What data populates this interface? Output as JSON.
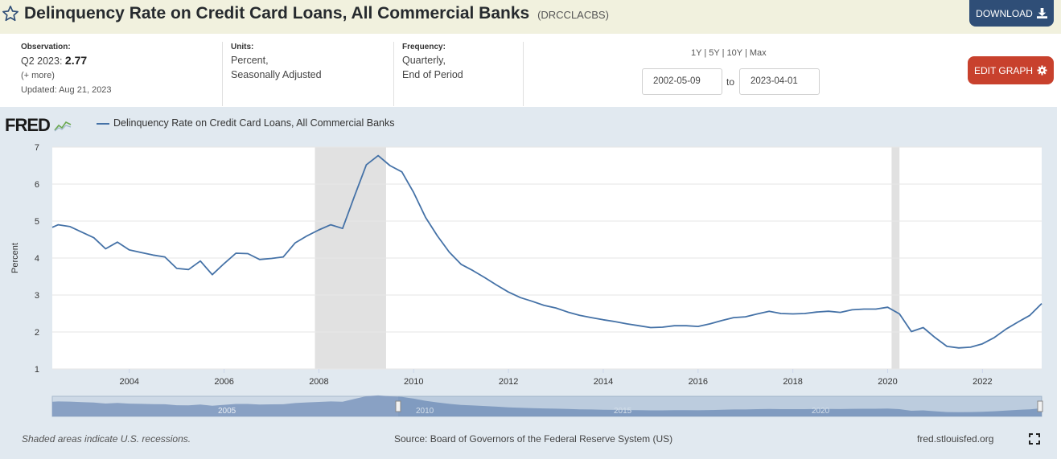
{
  "header": {
    "title": "Delinquency Rate on Credit Card Loans, All Commercial Banks",
    "series_id": "(DRCCLACBS)",
    "download_label": "DOWNLOAD",
    "star_icon": "star-icon",
    "download_icon": "download-icon"
  },
  "meta": {
    "observation_label": "Observation:",
    "observation_period": "Q2 2023:",
    "observation_value": "2.77",
    "more": "(+ more)",
    "updated": "Updated: Aug 21, 2023",
    "units_label": "Units:",
    "units_line1": "Percent,",
    "units_line2": "Seasonally Adjusted",
    "frequency_label": "Frequency:",
    "frequency_line1": "Quarterly,",
    "frequency_line2": "End of Period"
  },
  "controls": {
    "range_1y": "1Y",
    "range_5y": "5Y",
    "range_10y": "10Y",
    "range_max": "Max",
    "separator": "|",
    "start_date": "2002-05-09",
    "to_label": "to",
    "end_date": "2023-04-01",
    "edit_label": "EDIT GRAPH",
    "edit_icon": "gear-icon"
  },
  "chart_data": {
    "type": "line",
    "logo": "FRED",
    "series": [
      {
        "name": "Delinquency Rate on Credit Card Loans, All Commercial Banks",
        "color": "#4572a7",
        "x": [
          2002.375,
          2002.5,
          2002.75,
          2003.0,
          2003.25,
          2003.5,
          2003.75,
          2004.0,
          2004.25,
          2004.5,
          2004.75,
          2005.0,
          2005.25,
          2005.5,
          2005.75,
          2006.0,
          2006.25,
          2006.5,
          2006.75,
          2007.0,
          2007.25,
          2007.5,
          2007.75,
          2008.0,
          2008.25,
          2008.5,
          2008.75,
          2009.0,
          2009.25,
          2009.5,
          2009.75,
          2010.0,
          2010.25,
          2010.5,
          2010.75,
          2011.0,
          2011.25,
          2011.5,
          2011.75,
          2012.0,
          2012.25,
          2012.5,
          2012.75,
          2013.0,
          2013.25,
          2013.5,
          2013.75,
          2014.0,
          2014.25,
          2014.5,
          2014.75,
          2015.0,
          2015.25,
          2015.5,
          2015.75,
          2016.0,
          2016.25,
          2016.5,
          2016.75,
          2017.0,
          2017.25,
          2017.5,
          2017.75,
          2018.0,
          2018.25,
          2018.5,
          2018.75,
          2019.0,
          2019.25,
          2019.5,
          2019.75,
          2020.0,
          2020.25,
          2020.5,
          2020.75,
          2021.0,
          2021.25,
          2021.5,
          2021.75,
          2022.0,
          2022.25,
          2022.5,
          2022.75,
          2023.0,
          2023.25
        ],
        "y": [
          4.83,
          4.9,
          4.85,
          4.7,
          4.55,
          4.25,
          4.43,
          4.22,
          4.15,
          4.08,
          4.03,
          3.72,
          3.69,
          3.92,
          3.55,
          3.85,
          4.13,
          4.12,
          3.96,
          3.99,
          4.03,
          4.41,
          4.6,
          4.76,
          4.9,
          4.8,
          5.67,
          6.52,
          6.77,
          6.5,
          6.33,
          5.77,
          5.1,
          4.6,
          4.16,
          3.83,
          3.66,
          3.47,
          3.27,
          3.08,
          2.93,
          2.83,
          2.72,
          2.65,
          2.54,
          2.45,
          2.39,
          2.33,
          2.28,
          2.22,
          2.17,
          2.12,
          2.13,
          2.17,
          2.17,
          2.15,
          2.22,
          2.31,
          2.39,
          2.41,
          2.49,
          2.56,
          2.5,
          2.49,
          2.5,
          2.54,
          2.56,
          2.53,
          2.6,
          2.62,
          2.62,
          2.67,
          2.49,
          2.01,
          2.12,
          1.85,
          1.61,
          1.57,
          1.59,
          1.68,
          1.85,
          2.08,
          2.27,
          2.45,
          2.77
        ]
      }
    ],
    "recessions": [
      [
        2007.917,
        2009.417
      ],
      [
        2020.083,
        2020.25
      ]
    ],
    "xlim": [
      2002.375,
      2023.25
    ],
    "ylim": [
      1,
      7
    ],
    "yticks": [
      1,
      2,
      3,
      4,
      5,
      6,
      7
    ],
    "xticks": [
      2004,
      2006,
      2008,
      2010,
      2012,
      2014,
      2016,
      2018,
      2020,
      2022
    ],
    "ylabel": "Percent",
    "grid": true,
    "legend_position": "top-left",
    "navigator_labels": [
      "2005",
      "2010",
      "2015",
      "2020"
    ],
    "recession_note": "Shaded areas indicate U.S. recessions.",
    "source": "Source: Board of Governors of the Federal Reserve System (US)",
    "site": "fred.stlouisfed.org",
    "expand_icon": "expand-icon"
  }
}
